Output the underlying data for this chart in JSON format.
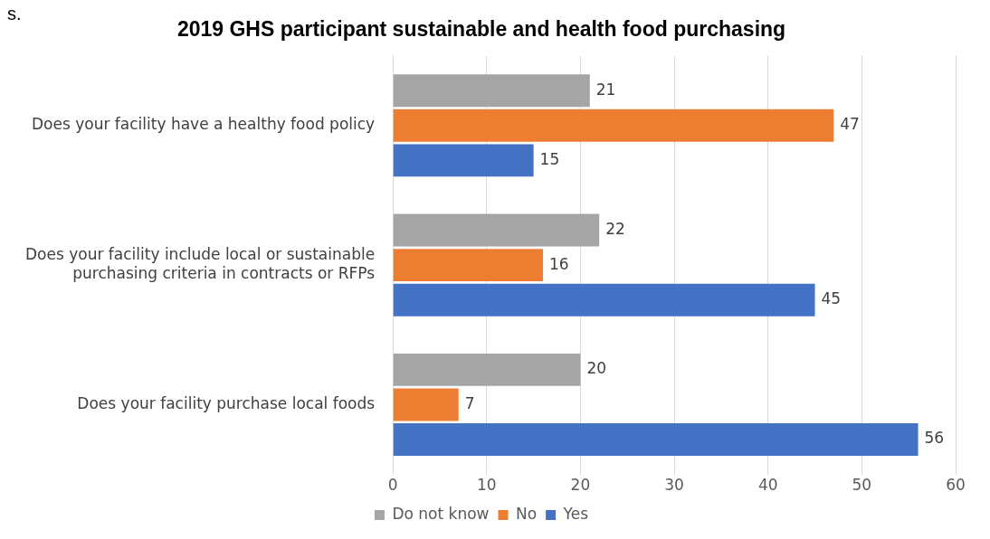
{
  "chart_data": {
    "type": "bar",
    "orientation": "horizontal",
    "title": "2019 GHS participant sustainable and health food purchasing",
    "categories": [
      "Does your facility have a healthy food policy",
      "Does your facility include local or sustainable purchasing criteria in contracts or RFPs",
      "Does your facility purchase local foods"
    ],
    "series": [
      {
        "name": "Do not know",
        "color": "#a5a5a5",
        "values": [
          21,
          22,
          20
        ]
      },
      {
        "name": "No",
        "color": "#ed7d31",
        "values": [
          47,
          16,
          7
        ]
      },
      {
        "name": "Yes",
        "color": "#4472c4",
        "values": [
          15,
          45,
          56
        ]
      }
    ],
    "xlim": [
      0,
      60
    ],
    "xticks": [
      0,
      10,
      20,
      30,
      40,
      50,
      60
    ],
    "grid": "x",
    "legend": "bottom",
    "data_labels": true,
    "annotations": [
      "s."
    ]
  }
}
